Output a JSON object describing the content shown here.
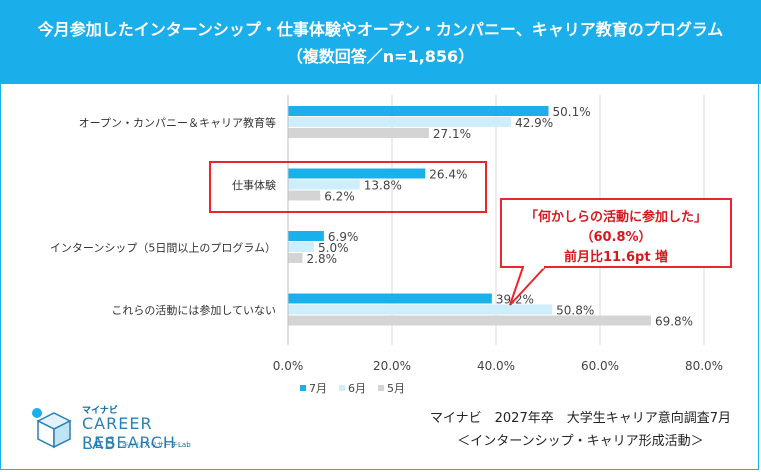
{
  "title_line1": "今月参加したインターンシップ・仕事体験やオープン・カンパニー、キャリア教育のプログラム",
  "title_line2": "（複数回答／n=1,856）",
  "chart_data": {
    "type": "bar",
    "orientation": "horizontal",
    "categories": [
      "オープン・カンパニー＆キャリア教育等",
      "仕事体験",
      "インターンシップ（5日間以上のプログラム）",
      "これらの活動には参加していない"
    ],
    "series": [
      {
        "name": "7月",
        "color": "#1ab0ec",
        "values": [
          50.1,
          26.4,
          6.9,
          39.2
        ]
      },
      {
        "name": "6月",
        "color": "#cfeefb",
        "values": [
          42.9,
          13.8,
          5.0,
          50.8
        ]
      },
      {
        "name": "5月",
        "color": "#d4d4d4",
        "values": [
          27.1,
          6.2,
          2.8,
          69.8
        ]
      }
    ],
    "xlim": [
      0,
      80
    ],
    "xticks": [
      "0.0%",
      "20.0%",
      "40.0%",
      "60.0%",
      "80.0%"
    ],
    "grid": true,
    "legend": "bottom",
    "highlighted_category": "仕事体験"
  },
  "callout": {
    "line1": "「何かしらの活動に参加した」",
    "line2": "（60.8%）",
    "line3": "前月比11.6pt 増"
  },
  "source": {
    "line1": "マイナビ　2027年卒　大学生キャリア意向調査7月",
    "line2": "＜インターンシップ・キャリア形成活動＞"
  },
  "logo": {
    "small": "マイナビ",
    "main": "CAREER RESEARCH",
    "lab": "LAB",
    "sub": "キャリアリサーチLab"
  }
}
